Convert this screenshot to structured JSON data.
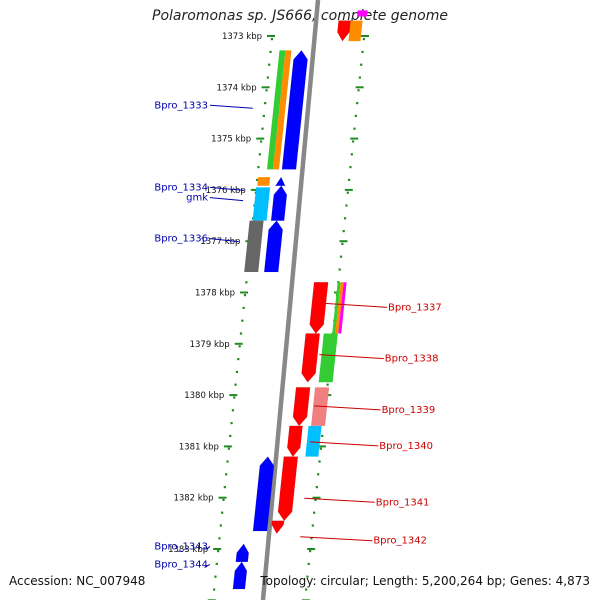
{
  "title": "Polaromonas sp. JS666, complete genome",
  "accession_text": "Accession: NC_007948",
  "summary_text": "Topology: circular; Length: 5,200,264 bp; Genes: 4,873",
  "scale_labels": [
    {
      "label": "1373 kbp",
      "kbp": 1373
    },
    {
      "label": "1374 kbp",
      "kbp": 1374
    },
    {
      "label": "1375 kbp",
      "kbp": 1375
    },
    {
      "label": "1376 kbp",
      "kbp": 1376
    },
    {
      "label": "1377 kbp",
      "kbp": 1377
    },
    {
      "label": "1378 kbp",
      "kbp": 1378
    },
    {
      "label": "1379 kbp",
      "kbp": 1379
    },
    {
      "label": "1380 kbp",
      "kbp": 1380
    },
    {
      "label": "1381 kbp",
      "kbp": 1381
    },
    {
      "label": "1382 kbp",
      "kbp": 1382
    },
    {
      "label": "1383 kbp",
      "kbp": 1383
    }
  ],
  "gene_labels": [
    {
      "name": "Bpro_1333",
      "strand": "-",
      "kbp": 1374.35
    },
    {
      "name": "Bpro_1334",
      "strand": "-",
      "kbp": 1375.95
    },
    {
      "name": "gmk",
      "strand": "-",
      "kbp": 1376.15
    },
    {
      "name": "Bpro_1336",
      "strand": "-",
      "kbp": 1376.95
    },
    {
      "name": "Bpro_1337",
      "strand": "+",
      "kbp": 1378.25
    },
    {
      "name": "Bpro_1338",
      "strand": "+",
      "kbp": 1379.25
    },
    {
      "name": "Bpro_1339",
      "strand": "+",
      "kbp": 1380.25
    },
    {
      "name": "Bpro_1340",
      "strand": "+",
      "kbp": 1380.95
    },
    {
      "name": "Bpro_1341",
      "strand": "+",
      "kbp": 1382.05
    },
    {
      "name": "Bpro_1342",
      "strand": "+",
      "kbp": 1382.8
    },
    {
      "name": "Bpro_1343",
      "strand": "-",
      "kbp": 1382.95
    },
    {
      "name": "Bpro_1344",
      "strand": "-",
      "kbp": 1383.3
    }
  ],
  "colors": {
    "backbone": "#888888",
    "scale_green": "#228b22",
    "gene_plus": "#ff0000",
    "gene_minus": "#0000ff",
    "label_plus": "#cc0000",
    "label_minus": "#0000aa",
    "cog_green": "#33cc33",
    "cog_orange": "#ff8c00",
    "cog_cyan": "#00bfff",
    "cog_gray": "#666666",
    "cog_pink": "#f08080",
    "cog_magenta": "#ff00ff"
  }
}
